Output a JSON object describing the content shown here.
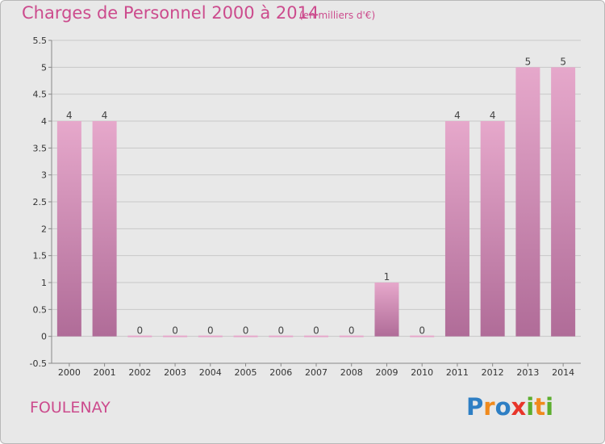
{
  "header": {
    "title": "Charges de Personnel 2000 à 2014",
    "subtitle": "(en milliers d'€)"
  },
  "footer": {
    "commune": "FOULENAY",
    "logo_text": "Proxiti",
    "logo_letters": [
      {
        "char": "P",
        "color": "#2e7fc4"
      },
      {
        "char": "r",
        "color": "#f08a1c"
      },
      {
        "char": "o",
        "color": "#2e7fc4"
      },
      {
        "char": "x",
        "color": "#e8352a"
      },
      {
        "char": "i",
        "color": "#5cae2e"
      },
      {
        "char": "t",
        "color": "#f08a1c"
      },
      {
        "char": "i",
        "color": "#5cae2e"
      }
    ]
  },
  "colors": {
    "title": "#cc4b8d",
    "bar_light": "#e6a8cb",
    "bar_dark": "#b06c98",
    "background": "#e8e8e8",
    "grid": "#c8c8c8"
  },
  "chart_data": {
    "type": "bar",
    "title": "Charges de Personnel 2000 à 2014",
    "subtitle": "(en milliers d'€)",
    "categories": [
      "2000",
      "2001",
      "2002",
      "2003",
      "2004",
      "2005",
      "2006",
      "2007",
      "2008",
      "2009",
      "2010",
      "2011",
      "2012",
      "2013",
      "2014"
    ],
    "values": [
      4,
      4,
      0,
      0,
      0,
      0,
      0,
      0,
      0,
      1,
      0,
      4,
      4,
      5,
      5
    ],
    "value_labels": [
      "4",
      "4",
      "0",
      "0",
      "0",
      "0",
      "0",
      "0",
      "0",
      "1",
      "0",
      "4",
      "4",
      "5",
      "5"
    ],
    "ylim": [
      -0.5,
      5.5
    ],
    "yticks": [
      "-0.5",
      "0",
      "0.5",
      "1",
      "1.5",
      "2",
      "2.5",
      "3",
      "3.5",
      "4",
      "4.5",
      "5",
      "5.5"
    ],
    "ytick_values": [
      -0.5,
      0,
      0.5,
      1,
      1.5,
      2,
      2.5,
      3,
      3.5,
      4,
      4.5,
      5,
      5.5
    ],
    "xlabel": "",
    "ylabel": "",
    "grid": true,
    "legend": "none"
  }
}
